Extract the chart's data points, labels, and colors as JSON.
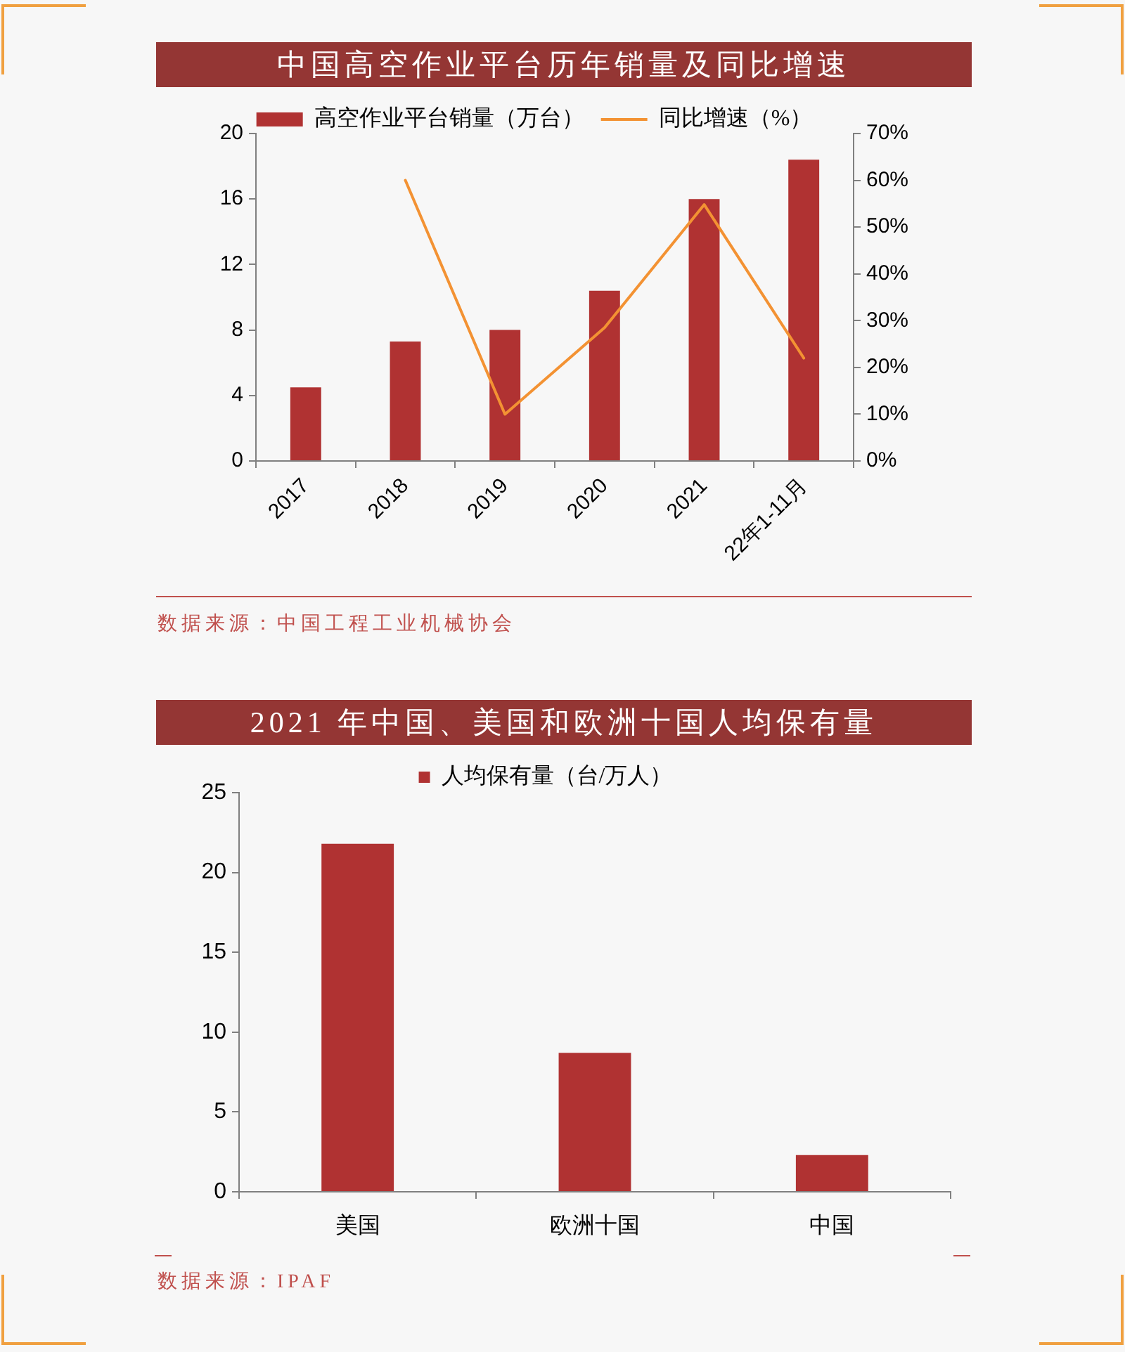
{
  "chart_data": [
    {
      "type": "bar",
      "title": "中国高空作业平台历年销量及同比增速",
      "categories": [
        "2017",
        "2018",
        "2019",
        "2020",
        "2021",
        "22年1-11月"
      ],
      "series": [
        {
          "name": "高空作业平台销量（万台）",
          "color": "#b03232",
          "values": [
            4.5,
            7.3,
            8.0,
            10.4,
            16.0,
            18.4
          ]
        },
        {
          "name": "同比增速（%）",
          "type": "line",
          "axis": "y2",
          "color": "#f39233",
          "values": [
            null,
            60,
            10,
            28.5,
            54.8,
            22
          ]
        }
      ],
      "ylim": [
        0,
        20
      ],
      "yticks": [
        0,
        4,
        8,
        12,
        16,
        20
      ],
      "y2lim": [
        0,
        70
      ],
      "y2ticks": [
        {
          "value": 0,
          "label": "0%"
        },
        {
          "value": 10,
          "label": "10%"
        },
        {
          "value": 20,
          "label": "20%"
        },
        {
          "value": 30,
          "label": "30%"
        },
        {
          "value": 40,
          "label": "40%"
        },
        {
          "value": 50,
          "label": "50%"
        },
        {
          "value": 60,
          "label": "60%"
        },
        {
          "value": 70,
          "label": "70%"
        }
      ],
      "legend": "top",
      "grid": false,
      "marker": "none",
      "annotations": [
        "数据来源：中国工程工业机械协会"
      ]
    },
    {
      "type": "bar",
      "title": "2021 年中国、美国和欧洲十国人均保有量",
      "categories": [
        "美国",
        "欧洲十国",
        "中国"
      ],
      "series": [
        {
          "name": "人均保有量（台/万人）",
          "color": "#b03232",
          "values": [
            21.8,
            8.7,
            2.3
          ]
        }
      ],
      "ylim": [
        0,
        25
      ],
      "yticks": [
        0,
        5,
        10,
        15,
        20,
        25
      ],
      "legend": "top",
      "grid": false,
      "annotations": [
        "数据来源：IPAF"
      ]
    }
  ]
}
